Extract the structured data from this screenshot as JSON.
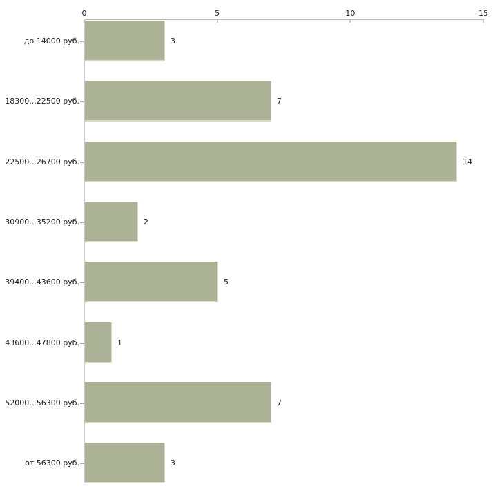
{
  "chart_data": {
    "type": "bar",
    "orientation": "horizontal",
    "title": "",
    "xlabel": "",
    "ylabel": "",
    "categories": [
      "до 14000 руб.",
      "18300...22500 руб.",
      "22500...26700 руб.",
      "30900...35200 руб.",
      "39400...43600 руб.",
      "43600...47800 руб.",
      "52000...56300 руб.",
      "от 56300 руб."
    ],
    "values": [
      3,
      7,
      14,
      2,
      5,
      1,
      7,
      3
    ],
    "value_labels": [
      "3",
      "7",
      "14",
      "2",
      "5",
      "1",
      "7",
      "3"
    ],
    "x_ticks": [
      0,
      5,
      10,
      15
    ],
    "x_tick_labels": [
      "0",
      "5",
      "10",
      "15"
    ],
    "xlim": [
      0,
      15
    ],
    "axis_position": "top",
    "grid": false,
    "legend": null,
    "colors": {
      "bar_fill": "#acb295",
      "bar_edge_highlight": "#d9dbc8",
      "axis_line": "#b5b5b5",
      "tick_mark": "#c9cdb4",
      "text": "#1c1c1c",
      "background": "#ffffff"
    }
  }
}
